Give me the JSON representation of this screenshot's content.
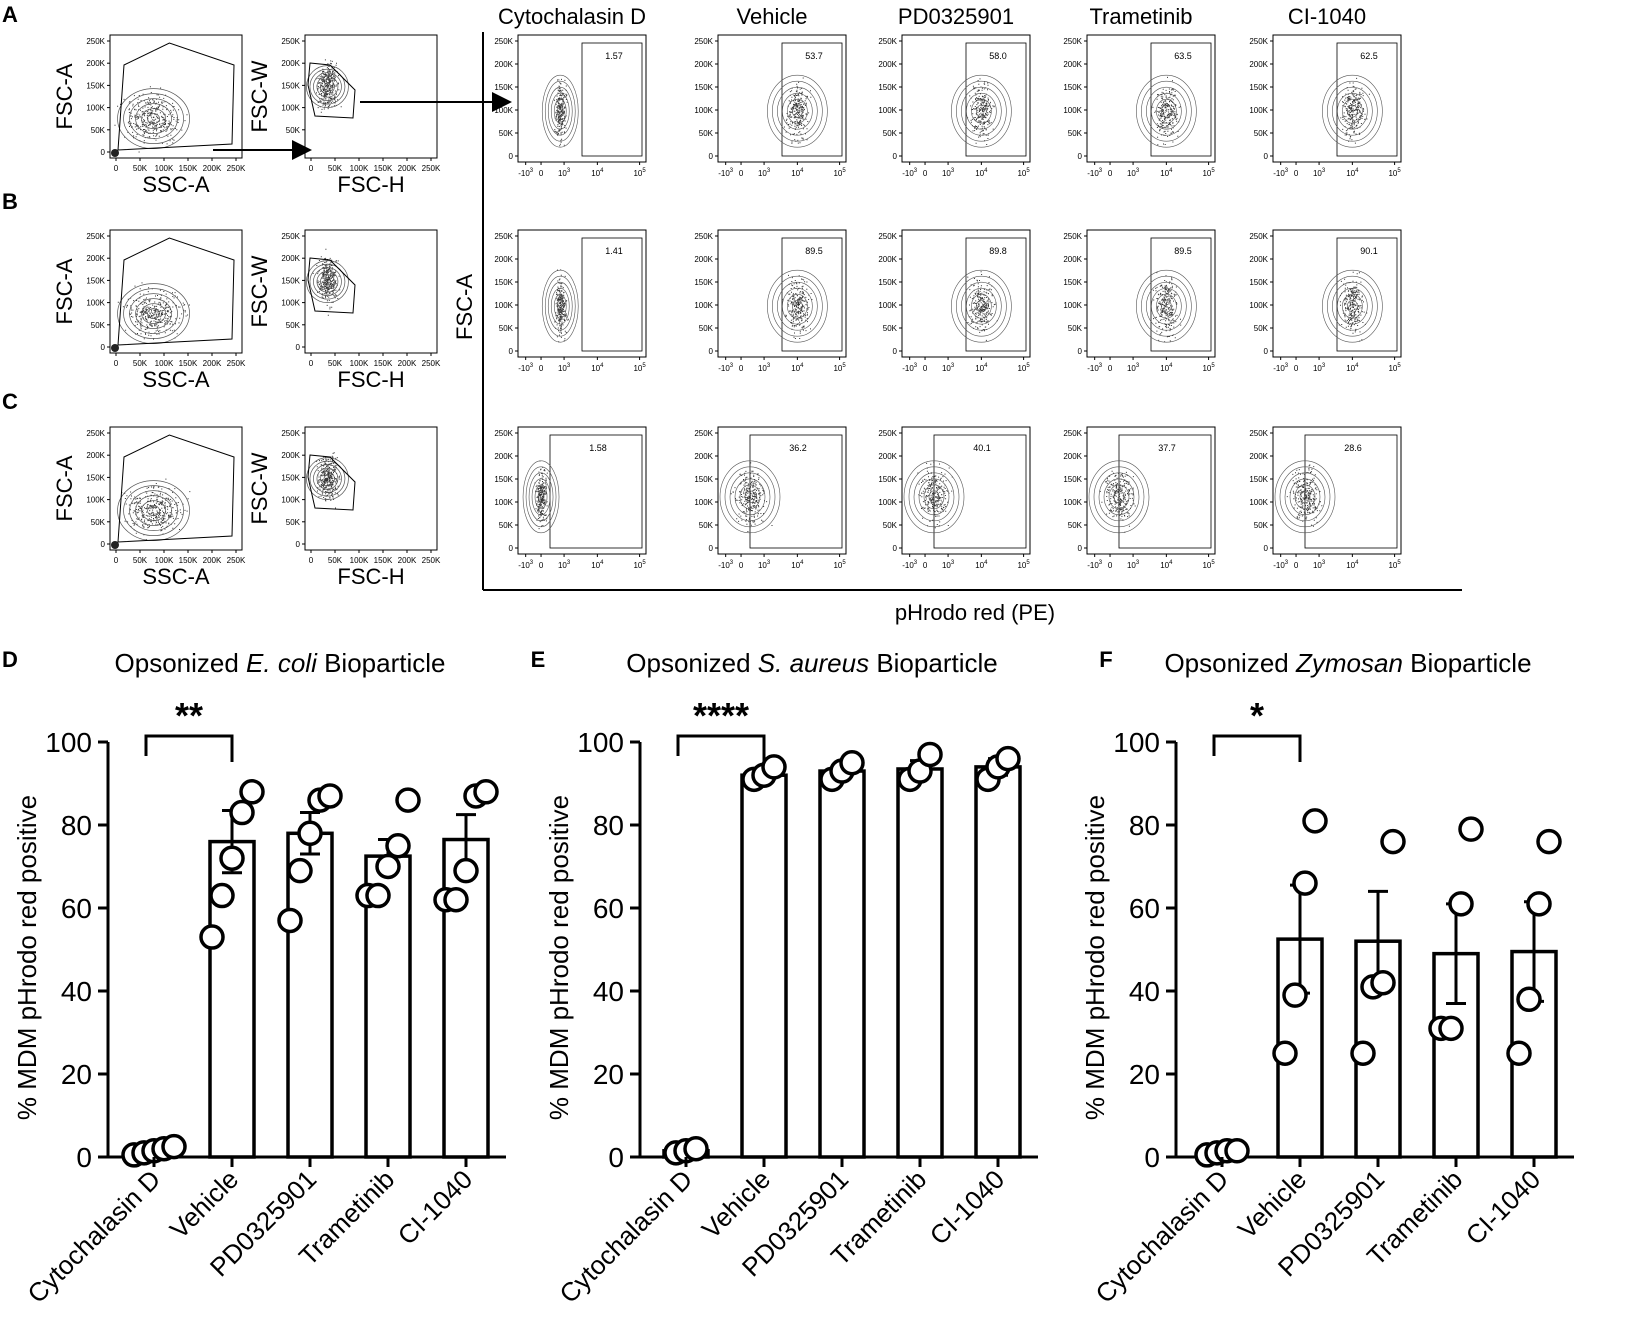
{
  "figure": {
    "panel_letters": [
      "A",
      "B",
      "C",
      "D",
      "E",
      "F"
    ],
    "shared_xlabel": "pHrodo red (PE)",
    "shared_ylabel": "FSC-A"
  },
  "gating": {
    "ssc": {
      "xlabel": "SSC-A",
      "ylabel": "FSC-A",
      "xticks": [
        "0",
        "50K",
        "100K",
        "150K",
        "200K",
        "250K"
      ],
      "yticks": [
        "0",
        "50K",
        "100K",
        "150K",
        "200K",
        "250K"
      ]
    },
    "fsch": {
      "xlabel": "FSC-H",
      "ylabel": "FSC-W",
      "xticks": [
        "0",
        "50K",
        "100K",
        "150K",
        "200K",
        "250K"
      ],
      "yticks": [
        "0",
        "50K",
        "100K",
        "150K",
        "200K",
        "250K"
      ]
    }
  },
  "flow": {
    "conditions": [
      "Cytochalasin D",
      "Vehicle",
      "PD0325901",
      "Trametinib",
      "CI-1040"
    ],
    "yticks": [
      "0",
      "50K",
      "100K",
      "150K",
      "200K",
      "250K"
    ],
    "xticks": [
      "-10^3",
      "0",
      "10^3",
      "10^4",
      "10^5"
    ],
    "gate_percent": [
      [
        "1.57",
        "53.7",
        "58.0",
        "63.5",
        "62.5"
      ],
      [
        "1.41",
        "89.5",
        "89.8",
        "89.5",
        "90.1"
      ],
      [
        "1.58",
        "36.2",
        "40.1",
        "37.7",
        "28.6"
      ]
    ]
  },
  "chart_data": [
    {
      "type": "bar",
      "panel": "D",
      "title_pre": "Opsonized ",
      "title_italic": "E. coli",
      "title_post": " Bioparticle",
      "ylabel": "% MDM pHrodo red positive",
      "xlabel": "",
      "categories": [
        "Cytochalasin D",
        "Vehicle",
        "PD0325901",
        "Trametinib",
        "CI-1040"
      ],
      "values": [
        1.5,
        76,
        78,
        72.5,
        76.5
      ],
      "errors": [
        0.5,
        7.5,
        5,
        4,
        6
      ],
      "points": [
        [
          0.5,
          1,
          1.5,
          2,
          2.5
        ],
        [
          53,
          63,
          72,
          83,
          88
        ],
        [
          57,
          69,
          78,
          86,
          87
        ],
        [
          63,
          63,
          70,
          75,
          86
        ],
        [
          62,
          62,
          69,
          87,
          88
        ]
      ],
      "ylim": [
        0,
        100
      ],
      "yticks": [
        0,
        20,
        40,
        60,
        80,
        100
      ],
      "significance": "**"
    },
    {
      "type": "bar",
      "panel": "E",
      "title_pre": "Opsonized ",
      "title_italic": "S. aureus",
      "title_post": " Bioparticle",
      "ylabel": "% MDM pHrodo red positive",
      "xlabel": "",
      "categories": [
        "Cytochalasin D",
        "Vehicle",
        "PD0325901",
        "Trametinib",
        "CI-1040"
      ],
      "values": [
        1.5,
        92,
        93,
        93.5,
        94
      ],
      "errors": [
        0.3,
        1,
        1.5,
        2,
        2
      ],
      "points": [
        [
          1,
          1.5,
          2
        ],
        [
          91,
          92,
          94
        ],
        [
          91,
          93,
          95
        ],
        [
          91,
          93,
          97
        ],
        [
          91,
          94,
          96
        ]
      ],
      "ylim": [
        0,
        100
      ],
      "yticks": [
        0,
        20,
        40,
        60,
        80,
        100
      ],
      "significance": "****"
    },
    {
      "type": "bar",
      "panel": "F",
      "title_pre": "Opsonized ",
      "title_italic": "Zymosan",
      "title_post": " Bioparticle",
      "ylabel": "% MDM pHrodo red positive",
      "xlabel": "",
      "categories": [
        "Cytochalasin D",
        "Vehicle",
        "PD0325901",
        "Trametinib",
        "CI-1040"
      ],
      "values": [
        1,
        52.5,
        52,
        49,
        49.5
      ],
      "errors": [
        0.3,
        13,
        12,
        12,
        12
      ],
      "points": [
        [
          0.5,
          1,
          1.5,
          1.5
        ],
        [
          25,
          39,
          66,
          81
        ],
        [
          25,
          41,
          42,
          76
        ],
        [
          31,
          31,
          61,
          79
        ],
        [
          25,
          38,
          61,
          76
        ]
      ],
      "ylim": [
        0,
        100
      ],
      "yticks": [
        0,
        20,
        40,
        60,
        80,
        100
      ],
      "significance": "*"
    }
  ]
}
